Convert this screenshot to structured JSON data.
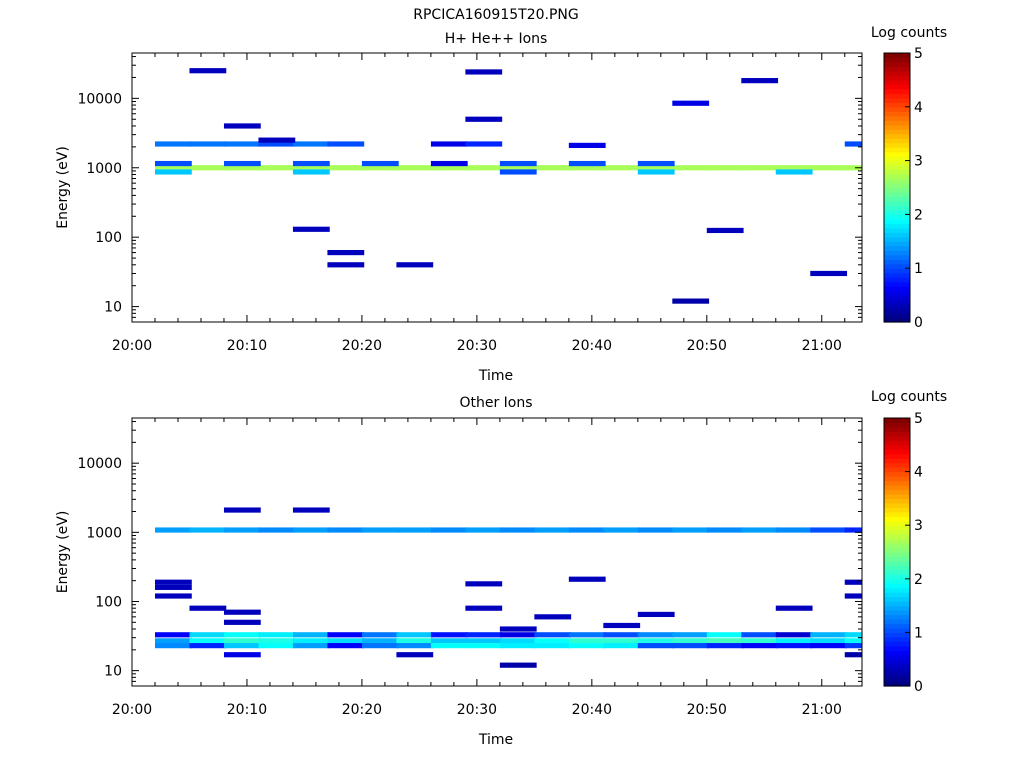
{
  "figure_title": "RPCICA160915T20.PNG",
  "chart_data": [
    {
      "type": "heatmap",
      "title": "H+ He++ Ions",
      "xlabel": "Time",
      "ylabel": "Energy (eV)",
      "x_ticks": [
        "20:00",
        "20:10",
        "20:20",
        "20:30",
        "20:40",
        "20:50",
        "21:00"
      ],
      "y_ticks": [
        "10",
        "100",
        "1000",
        "10000"
      ],
      "y_scale": "log",
      "ylim": [
        6,
        45000
      ],
      "xlim_minutes": [
        0,
        63.5
      ],
      "colorbar": {
        "label": "Log counts",
        "range": [
          0,
          5
        ],
        "ticks": [
          "0",
          "1",
          "2",
          "3",
          "4",
          "5"
        ]
      },
      "time_bin_starts_minutes": [
        2,
        5,
        8,
        11,
        14,
        17,
        20,
        23,
        26,
        29,
        32,
        35,
        38,
        41,
        44,
        47,
        50,
        53,
        56,
        59,
        62
      ],
      "time_bin_width_minutes": 3.2,
      "cells": [
        {
          "t": 0,
          "e": 1000,
          "v": 2.7
        },
        {
          "t": 1,
          "e": 1000,
          "v": 2.7
        },
        {
          "t": 2,
          "e": 1000,
          "v": 2.7
        },
        {
          "t": 3,
          "e": 1000,
          "v": 2.7
        },
        {
          "t": 4,
          "e": 1000,
          "v": 2.7
        },
        {
          "t": 5,
          "e": 1000,
          "v": 2.7
        },
        {
          "t": 6,
          "e": 1000,
          "v": 2.7
        },
        {
          "t": 7,
          "e": 1000,
          "v": 2.7
        },
        {
          "t": 8,
          "e": 1000,
          "v": 2.7
        },
        {
          "t": 9,
          "e": 1000,
          "v": 2.7
        },
        {
          "t": 10,
          "e": 1000,
          "v": 2.7
        },
        {
          "t": 11,
          "e": 1000,
          "v": 2.7
        },
        {
          "t": 12,
          "e": 1000,
          "v": 2.7
        },
        {
          "t": 13,
          "e": 1000,
          "v": 2.7
        },
        {
          "t": 14,
          "e": 1000,
          "v": 2.7
        },
        {
          "t": 15,
          "e": 1000,
          "v": 2.7
        },
        {
          "t": 16,
          "e": 1000,
          "v": 2.7
        },
        {
          "t": 17,
          "e": 1000,
          "v": 2.7
        },
        {
          "t": 18,
          "e": 1000,
          "v": 2.7
        },
        {
          "t": 19,
          "e": 1000,
          "v": 2.7
        },
        {
          "t": 20,
          "e": 1000,
          "v": 2.7
        },
        {
          "t": 0,
          "e": 1150,
          "v": 1.0
        },
        {
          "t": 2,
          "e": 1150,
          "v": 1.0
        },
        {
          "t": 4,
          "e": 1150,
          "v": 1.0
        },
        {
          "t": 6,
          "e": 1150,
          "v": 1.0
        },
        {
          "t": 8,
          "e": 1150,
          "v": 0.5
        },
        {
          "t": 10,
          "e": 1150,
          "v": 1.0
        },
        {
          "t": 12,
          "e": 1150,
          "v": 1.0
        },
        {
          "t": 14,
          "e": 1150,
          "v": 1.0
        },
        {
          "t": 0,
          "e": 870,
          "v": 1.6
        },
        {
          "t": 4,
          "e": 870,
          "v": 1.6
        },
        {
          "t": 10,
          "e": 870,
          "v": 1.0
        },
        {
          "t": 14,
          "e": 870,
          "v": 1.6
        },
        {
          "t": 18,
          "e": 870,
          "v": 1.6
        },
        {
          "t": 0,
          "e": 2200,
          "v": 1.2
        },
        {
          "t": 1,
          "e": 2200,
          "v": 1.2
        },
        {
          "t": 2,
          "e": 2200,
          "v": 1.2
        },
        {
          "t": 3,
          "e": 2200,
          "v": 1.0
        },
        {
          "t": 4,
          "e": 2200,
          "v": 1.2
        },
        {
          "t": 5,
          "e": 2200,
          "v": 1.0
        },
        {
          "t": 8,
          "e": 2200,
          "v": 0.5
        },
        {
          "t": 9,
          "e": 2200,
          "v": 0.8
        },
        {
          "t": 12,
          "e": 2100,
          "v": 0.5
        },
        {
          "t": 20,
          "e": 2200,
          "v": 1.0
        },
        {
          "t": 1,
          "e": 25000,
          "v": 0.3
        },
        {
          "t": 2,
          "e": 4000,
          "v": 0.3
        },
        {
          "t": 3,
          "e": 2500,
          "v": 0.3
        },
        {
          "t": 4,
          "e": 130,
          "v": 0.3
        },
        {
          "t": 5,
          "e": 60,
          "v": 0.3
        },
        {
          "t": 5,
          "e": 40,
          "v": 0.3
        },
        {
          "t": 7,
          "e": 40,
          "v": 0.3
        },
        {
          "t": 9,
          "e": 24000,
          "v": 0.3
        },
        {
          "t": 9,
          "e": 5000,
          "v": 0.3
        },
        {
          "t": 15,
          "e": 8500,
          "v": 0.5
        },
        {
          "t": 15,
          "e": 12,
          "v": 0.2
        },
        {
          "t": 17,
          "e": 18000,
          "v": 0.3
        },
        {
          "t": 16,
          "e": 125,
          "v": 0.3
        },
        {
          "t": 19,
          "e": 30,
          "v": 0.3
        }
      ]
    },
    {
      "type": "heatmap",
      "title": "Other Ions",
      "xlabel": "Time",
      "ylabel": "Energy (eV)",
      "x_ticks": [
        "20:00",
        "20:10",
        "20:20",
        "20:30",
        "20:40",
        "20:50",
        "21:00"
      ],
      "y_ticks": [
        "10",
        "100",
        "1000",
        "10000"
      ],
      "y_scale": "log",
      "ylim": [
        6,
        45000
      ],
      "xlim_minutes": [
        0,
        63.5
      ],
      "colorbar": {
        "label": "Log counts",
        "range": [
          0,
          5
        ],
        "ticks": [
          "0",
          "1",
          "2",
          "3",
          "4",
          "5"
        ]
      },
      "time_bin_starts_minutes": [
        2,
        5,
        8,
        11,
        14,
        17,
        20,
        23,
        26,
        29,
        32,
        35,
        38,
        41,
        44,
        47,
        50,
        53,
        56,
        59,
        62
      ],
      "time_bin_width_minutes": 3.2,
      "cells": [
        {
          "t": 0,
          "e": 1080,
          "v": 1.4
        },
        {
          "t": 1,
          "e": 1080,
          "v": 1.5
        },
        {
          "t": 2,
          "e": 1080,
          "v": 1.4
        },
        {
          "t": 3,
          "e": 1080,
          "v": 1.3
        },
        {
          "t": 4,
          "e": 1080,
          "v": 1.4
        },
        {
          "t": 5,
          "e": 1080,
          "v": 1.3
        },
        {
          "t": 6,
          "e": 1080,
          "v": 1.4
        },
        {
          "t": 7,
          "e": 1080,
          "v": 1.4
        },
        {
          "t": 8,
          "e": 1080,
          "v": 1.3
        },
        {
          "t": 9,
          "e": 1080,
          "v": 1.4
        },
        {
          "t": 10,
          "e": 1080,
          "v": 1.3
        },
        {
          "t": 11,
          "e": 1080,
          "v": 1.4
        },
        {
          "t": 12,
          "e": 1080,
          "v": 1.3
        },
        {
          "t": 13,
          "e": 1080,
          "v": 1.4
        },
        {
          "t": 14,
          "e": 1080,
          "v": 1.3
        },
        {
          "t": 15,
          "e": 1080,
          "v": 1.4
        },
        {
          "t": 16,
          "e": 1080,
          "v": 1.3
        },
        {
          "t": 17,
          "e": 1080,
          "v": 1.4
        },
        {
          "t": 18,
          "e": 1080,
          "v": 1.3
        },
        {
          "t": 19,
          "e": 1080,
          "v": 1.0
        },
        {
          "t": 20,
          "e": 1080,
          "v": 0.8
        },
        {
          "t": 0,
          "e": 33,
          "v": 0.6
        },
        {
          "t": 1,
          "e": 33,
          "v": 1.7
        },
        {
          "t": 2,
          "e": 33,
          "v": 1.9
        },
        {
          "t": 3,
          "e": 33,
          "v": 1.8
        },
        {
          "t": 4,
          "e": 33,
          "v": 1.5
        },
        {
          "t": 5,
          "e": 33,
          "v": 0.6
        },
        {
          "t": 6,
          "e": 33,
          "v": 1.2
        },
        {
          "t": 7,
          "e": 33,
          "v": 1.6
        },
        {
          "t": 8,
          "e": 33,
          "v": 0.7
        },
        {
          "t": 9,
          "e": 33,
          "v": 0.8
        },
        {
          "t": 10,
          "e": 33,
          "v": 0.5
        },
        {
          "t": 11,
          "e": 33,
          "v": 1.0
        },
        {
          "t": 12,
          "e": 33,
          "v": 1.2
        },
        {
          "t": 13,
          "e": 33,
          "v": 1.0
        },
        {
          "t": 14,
          "e": 33,
          "v": 1.3
        },
        {
          "t": 15,
          "e": 33,
          "v": 1.4
        },
        {
          "t": 16,
          "e": 33,
          "v": 1.9
        },
        {
          "t": 17,
          "e": 33,
          "v": 1.0
        },
        {
          "t": 18,
          "e": 33,
          "v": 0.4
        },
        {
          "t": 19,
          "e": 33,
          "v": 1.5
        },
        {
          "t": 20,
          "e": 33,
          "v": 1.7
        },
        {
          "t": 0,
          "e": 27,
          "v": 1.4
        },
        {
          "t": 1,
          "e": 27,
          "v": 1.9
        },
        {
          "t": 2,
          "e": 27,
          "v": 2.1
        },
        {
          "t": 3,
          "e": 27,
          "v": 2.0
        },
        {
          "t": 4,
          "e": 27,
          "v": 1.8
        },
        {
          "t": 5,
          "e": 27,
          "v": 1.7
        },
        {
          "t": 6,
          "e": 27,
          "v": 1.5
        },
        {
          "t": 7,
          "e": 27,
          "v": 2.0
        },
        {
          "t": 8,
          "e": 27,
          "v": 1.6
        },
        {
          "t": 9,
          "e": 27,
          "v": 1.6
        },
        {
          "t": 10,
          "e": 27,
          "v": 1.7
        },
        {
          "t": 11,
          "e": 27,
          "v": 1.9
        },
        {
          "t": 12,
          "e": 27,
          "v": 2.1
        },
        {
          "t": 13,
          "e": 27,
          "v": 2.1
        },
        {
          "t": 14,
          "e": 27,
          "v": 2.0
        },
        {
          "t": 15,
          "e": 27,
          "v": 2.1
        },
        {
          "t": 16,
          "e": 27,
          "v": 2.2
        },
        {
          "t": 17,
          "e": 27,
          "v": 2.1
        },
        {
          "t": 18,
          "e": 27,
          "v": 1.8
        },
        {
          "t": 19,
          "e": 27,
          "v": 1.7
        },
        {
          "t": 20,
          "e": 27,
          "v": 1.9
        },
        {
          "t": 0,
          "e": 23,
          "v": 1.3
        },
        {
          "t": 1,
          "e": 23,
          "v": 0.8
        },
        {
          "t": 2,
          "e": 23,
          "v": 1.6
        },
        {
          "t": 3,
          "e": 23,
          "v": 1.9
        },
        {
          "t": 4,
          "e": 23,
          "v": 1.4
        },
        {
          "t": 5,
          "e": 23,
          "v": 0.6
        },
        {
          "t": 6,
          "e": 23,
          "v": 1.2
        },
        {
          "t": 7,
          "e": 23,
          "v": 1.3
        },
        {
          "t": 8,
          "e": 23,
          "v": 1.9
        },
        {
          "t": 9,
          "e": 23,
          "v": 1.9
        },
        {
          "t": 10,
          "e": 23,
          "v": 1.8
        },
        {
          "t": 11,
          "e": 23,
          "v": 1.8
        },
        {
          "t": 12,
          "e": 23,
          "v": 1.9
        },
        {
          "t": 13,
          "e": 23,
          "v": 1.8
        },
        {
          "t": 14,
          "e": 23,
          "v": 1.0
        },
        {
          "t": 15,
          "e": 23,
          "v": 1.0
        },
        {
          "t": 16,
          "e": 23,
          "v": 0.8
        },
        {
          "t": 17,
          "e": 23,
          "v": 0.6
        },
        {
          "t": 18,
          "e": 23,
          "v": 0.7
        },
        {
          "t": 19,
          "e": 23,
          "v": 0.6
        },
        {
          "t": 20,
          "e": 23,
          "v": 0.9
        },
        {
          "t": 0,
          "e": 190,
          "v": 0.3
        },
        {
          "t": 0,
          "e": 160,
          "v": 0.3
        },
        {
          "t": 0,
          "e": 120,
          "v": 0.3
        },
        {
          "t": 1,
          "e": 80,
          "v": 0.3
        },
        {
          "t": 2,
          "e": 2100,
          "v": 0.3
        },
        {
          "t": 2,
          "e": 70,
          "v": 0.3
        },
        {
          "t": 2,
          "e": 50,
          "v": 0.3
        },
        {
          "t": 2,
          "e": 17,
          "v": 0.5
        },
        {
          "t": 4,
          "e": 2100,
          "v": 0.3
        },
        {
          "t": 7,
          "e": 17,
          "v": 0.3
        },
        {
          "t": 9,
          "e": 180,
          "v": 0.3
        },
        {
          "t": 9,
          "e": 80,
          "v": 0.3
        },
        {
          "t": 10,
          "e": 40,
          "v": 0.3
        },
        {
          "t": 10,
          "e": 12,
          "v": 0.2
        },
        {
          "t": 11,
          "e": 60,
          "v": 0.3
        },
        {
          "t": 12,
          "e": 210,
          "v": 0.3
        },
        {
          "t": 13,
          "e": 45,
          "v": 0.3
        },
        {
          "t": 14,
          "e": 65,
          "v": 0.3
        },
        {
          "t": 18,
          "e": 80,
          "v": 0.3
        },
        {
          "t": 20,
          "e": 190,
          "v": 0.3
        },
        {
          "t": 20,
          "e": 120,
          "v": 0.3
        },
        {
          "t": 20,
          "e": 17,
          "v": 0.2
        }
      ]
    }
  ]
}
